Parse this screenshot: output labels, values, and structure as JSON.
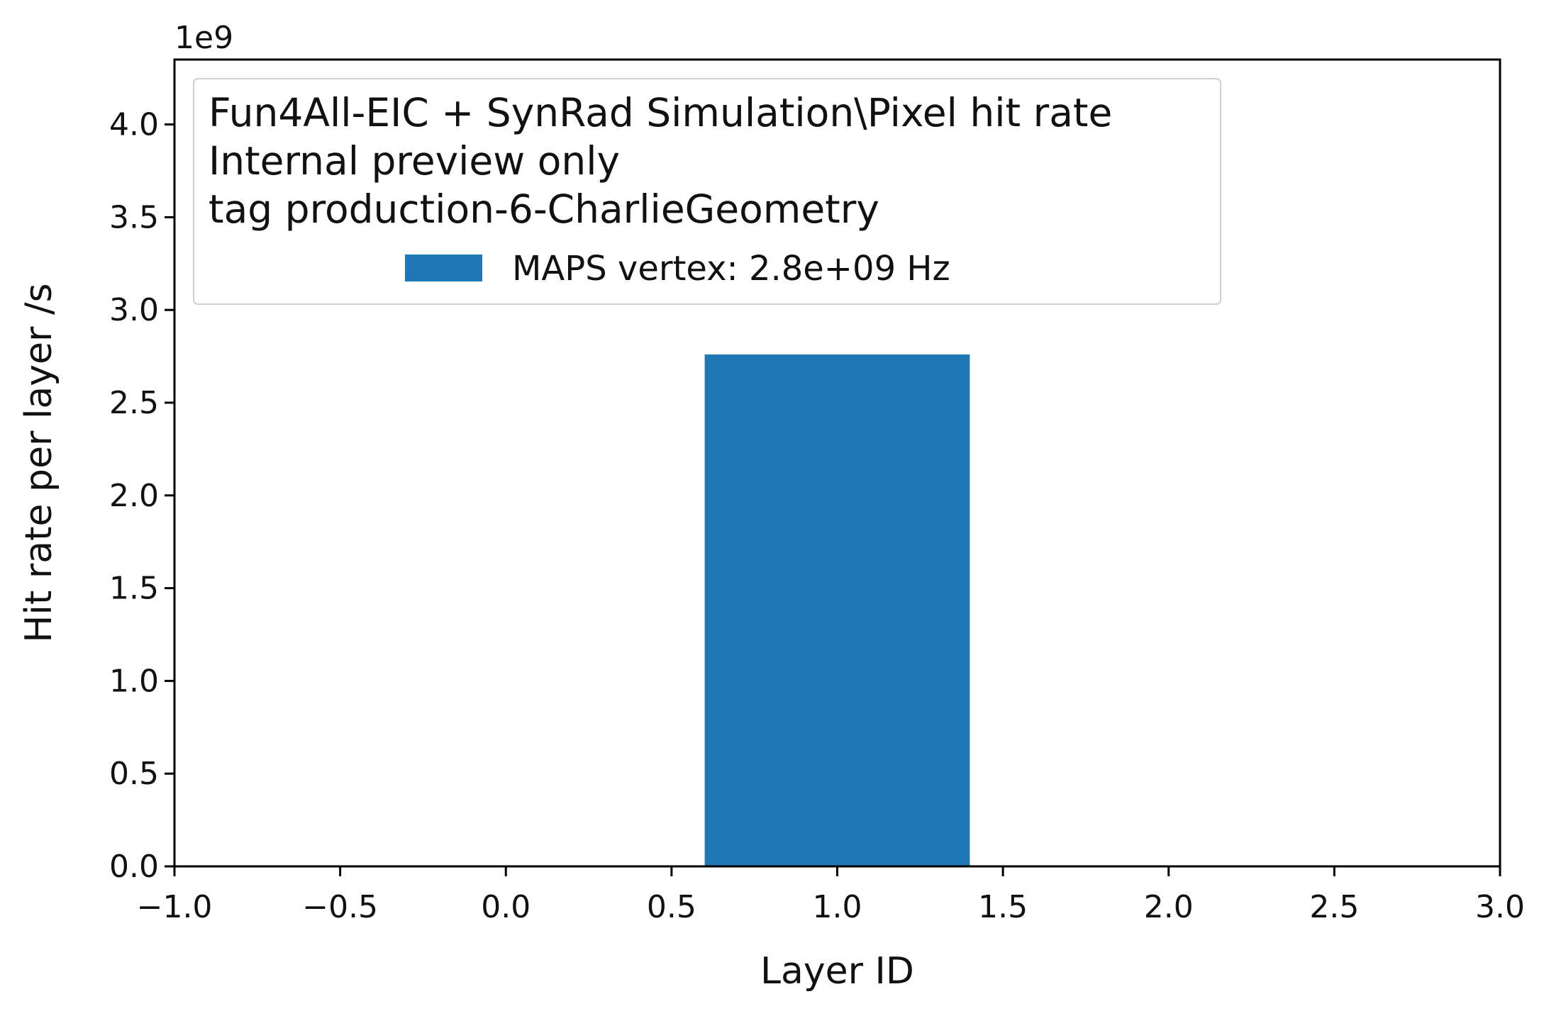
{
  "chart_data": {
    "type": "bar",
    "x_range": [
      -1.0,
      3.0
    ],
    "y_range": [
      0,
      4.35
    ],
    "y_multiplier_label": "1e9",
    "x_ticks": [
      "−1.0",
      "−0.5",
      "0.0",
      "0.5",
      "1.0",
      "1.5",
      "2.0",
      "2.5",
      "3.0"
    ],
    "x_tick_values": [
      -1.0,
      -0.5,
      0.0,
      0.5,
      1.0,
      1.5,
      2.0,
      2.5,
      3.0
    ],
    "y_ticks": [
      "0.0",
      "0.5",
      "1.0",
      "1.5",
      "2.0",
      "2.5",
      "3.0",
      "3.5",
      "4.0"
    ],
    "y_tick_values": [
      0.0,
      0.5,
      1.0,
      1.5,
      2.0,
      2.5,
      3.0,
      3.5,
      4.0
    ],
    "xlabel": "Layer ID",
    "ylabel": "Hit rate per layer /s",
    "grid": false,
    "legend_position": "top-left",
    "legend_title_lines": [
      "Fun4All-EIC + SynRad Simulation\\Pixel hit rate",
      "Internal preview only",
      "tag production-6-CharlieGeometry"
    ],
    "series": [
      {
        "name": "MAPS vertex: 2.8e+09 Hz",
        "color": "#1f77b4",
        "bars": [
          {
            "x": 1.0,
            "width": 0.8,
            "value": 2.76
          }
        ]
      }
    ]
  }
}
